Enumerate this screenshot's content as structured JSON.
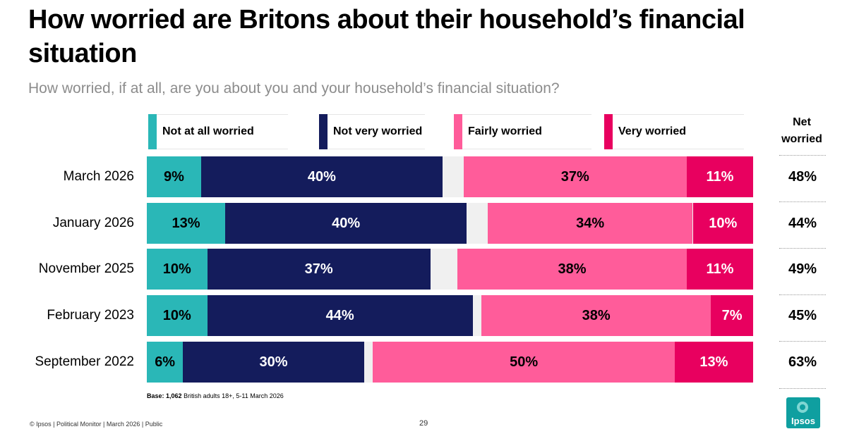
{
  "title": "How worried are Britons about their household’s financial situation",
  "subtitle": "How worried, if at all, are you about you and your household’s financial situation?",
  "colors": {
    "not_at_all": "#2ab7b7",
    "not_very": "#141c5c",
    "fairly": "#ff5c9a",
    "very": "#e8005f",
    "gap": "#f0f0f0"
  },
  "net_header": "Net worried",
  "chart_data": {
    "type": "bar",
    "orientation": "horizontal-stacked",
    "title": "How worried are Britons about their household’s financial situation",
    "categories": [
      "March 2026",
      "January 2026",
      "November 2025",
      "February 2023",
      "September 2022"
    ],
    "series": [
      {
        "name": "Not at all worried",
        "values": [
          9,
          13,
          10,
          10,
          6
        ],
        "labels": [
          "9%",
          "13%",
          "10%",
          "10%",
          "6%"
        ]
      },
      {
        "name": "Not very worried",
        "values": [
          40,
          40,
          37,
          44,
          30
        ],
        "labels": [
          "40%",
          "40%",
          "37%",
          "44%",
          "30%"
        ]
      },
      {
        "name": "Fairly worried",
        "values": [
          37,
          34,
          38,
          38,
          50
        ],
        "labels": [
          "37%",
          "34%",
          "38%",
          "38%",
          "50%"
        ]
      },
      {
        "name": "Very worried",
        "values": [
          11,
          10,
          11,
          7,
          13
        ],
        "labels": [
          "11%",
          "10%",
          "11%",
          "7%",
          "13%"
        ]
      }
    ],
    "net_worried": [
      "48%",
      "44%",
      "49%",
      "45%",
      "63%"
    ],
    "xlim": [
      0,
      100
    ]
  },
  "base": {
    "label": "Base:",
    "value": "1,062",
    "text": "British adults 18+, 5-11 March 2026"
  },
  "footer": "© Ipsos | Political Monitor | March 2026 | Public",
  "page_number": "29",
  "logo_text": "Ipsos"
}
